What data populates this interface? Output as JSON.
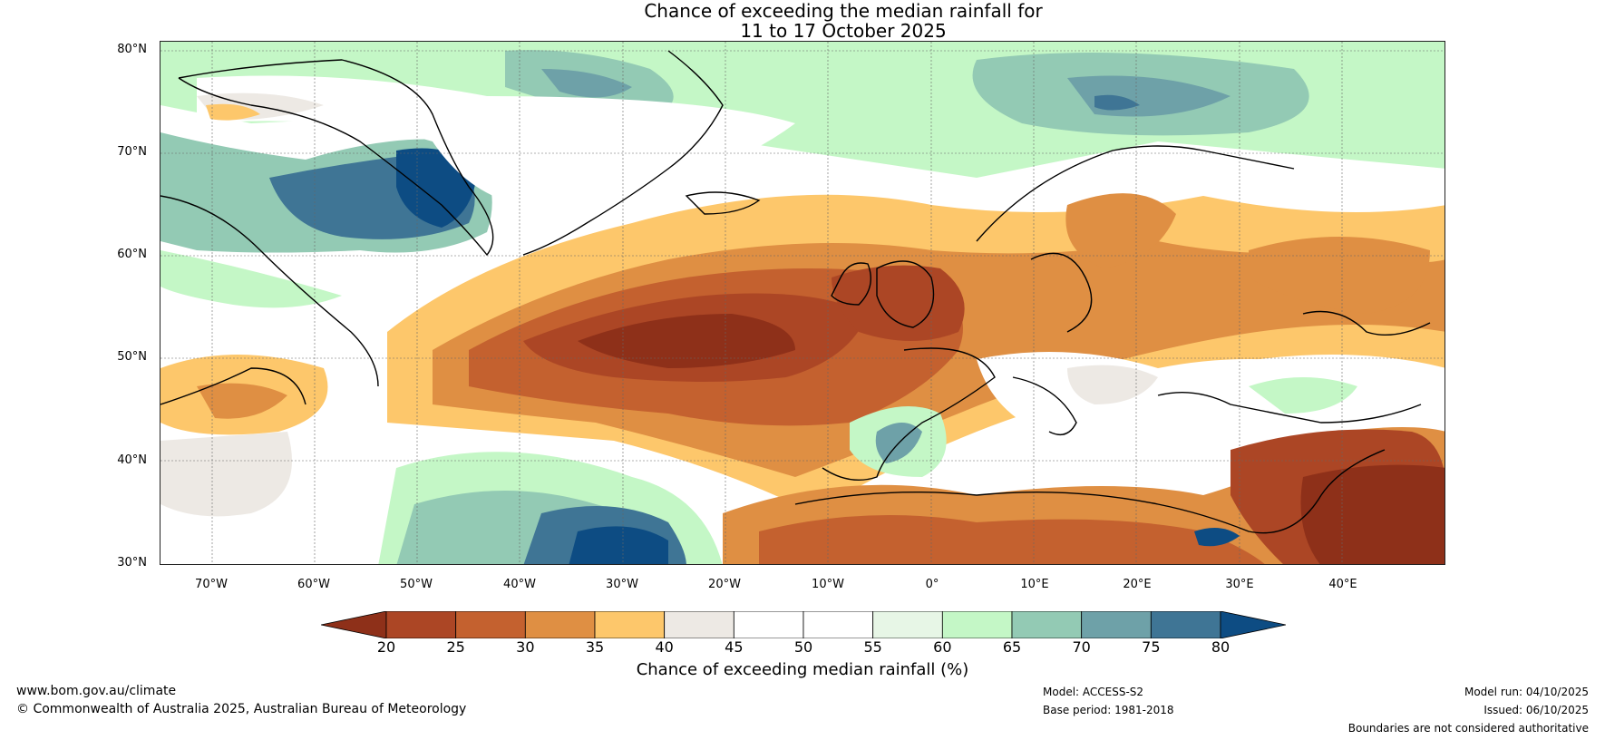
{
  "title": {
    "line1": "Chance of exceeding the median rainfall for",
    "line2": "11 to 17 October 2025"
  },
  "lat_labels": [
    "80°N",
    "70°N",
    "60°N",
    "50°N",
    "40°N",
    "30°N"
  ],
  "lon_labels": [
    "70°W",
    "60°W",
    "50°W",
    "40°W",
    "30°W",
    "20°W",
    "10°W",
    "0°",
    "10°E",
    "20°E",
    "30°E",
    "40°E"
  ],
  "colorbar": {
    "ticks": [
      "20",
      "25",
      "30",
      "35",
      "40",
      "45",
      "50",
      "55",
      "60",
      "65",
      "70",
      "75",
      "80"
    ],
    "colors": [
      "#8e3019",
      "#ac4625",
      "#c4612f",
      "#df8f43",
      "#fdc76b",
      "#ede9e4",
      "#ffffff",
      "#ffffff",
      "#e7f6e6",
      "#c4f7c6",
      "#93cab4",
      "#6ea1a8",
      "#3f7595",
      "#0d4c83"
    ],
    "label": "Chance of exceeding median rainfall (%)"
  },
  "footer": {
    "website": "www.bom.gov.au/climate",
    "copyright": "© Commonwealth of Australia 2025, Australian Bureau of Meteorology",
    "model": "Model: ACCESS-S2",
    "base_period": "Base period: 1981-2018",
    "model_run": "Model run: 04/10/2025",
    "issued": "Issued: 06/10/2025",
    "disclaimer": "Boundaries are not considered authoritative"
  }
}
